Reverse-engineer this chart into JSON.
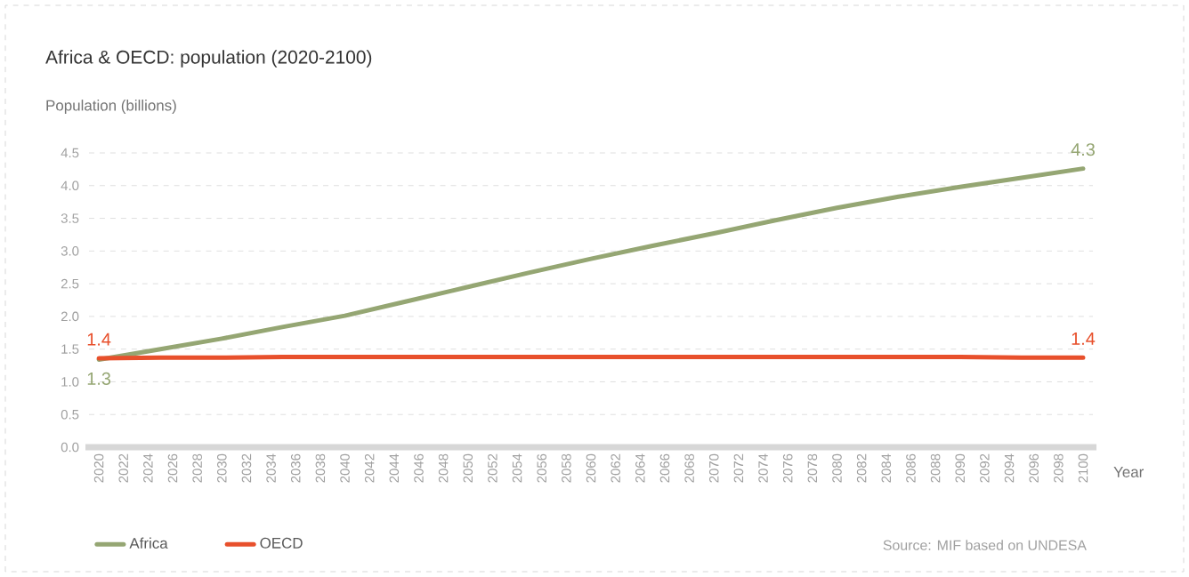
{
  "chart_data": {
    "type": "line",
    "title": "Africa & OECD: population (2020-2100)",
    "ylabel": "Population (billions)",
    "xlabel": "Year",
    "x": [
      2020,
      2025,
      2030,
      2035,
      2040,
      2045,
      2050,
      2055,
      2060,
      2065,
      2070,
      2075,
      2080,
      2085,
      2090,
      2095,
      2100
    ],
    "series": [
      {
        "name": "Africa",
        "color": "#95a673",
        "values": [
          1.34,
          1.5,
          1.66,
          1.84,
          2.01,
          2.23,
          2.45,
          2.67,
          2.88,
          3.08,
          3.27,
          3.47,
          3.66,
          3.83,
          3.98,
          4.12,
          4.26
        ],
        "value_labels": [
          "1.3",
          null,
          null,
          null,
          null,
          null,
          null,
          null,
          null,
          null,
          null,
          null,
          null,
          null,
          null,
          null,
          "4.3"
        ]
      },
      {
        "name": "OECD",
        "color": "#e8502c",
        "values": [
          1.36,
          1.37,
          1.37,
          1.38,
          1.38,
          1.38,
          1.38,
          1.38,
          1.38,
          1.38,
          1.38,
          1.38,
          1.38,
          1.38,
          1.38,
          1.37,
          1.37
        ],
        "value_labels": [
          "1.4",
          null,
          null,
          null,
          null,
          null,
          null,
          null,
          null,
          null,
          null,
          null,
          null,
          null,
          null,
          null,
          "1.4"
        ]
      }
    ],
    "xlim": [
      2019.2,
      2100.8
    ],
    "xticks": [
      2020,
      2022,
      2024,
      2026,
      2028,
      2030,
      2032,
      2034,
      2036,
      2038,
      2040,
      2042,
      2044,
      2046,
      2048,
      2050,
      2052,
      2054,
      2056,
      2058,
      2060,
      2062,
      2064,
      2066,
      2068,
      2070,
      2072,
      2074,
      2076,
      2078,
      2080,
      2082,
      2084,
      2086,
      2088,
      2090,
      2092,
      2094,
      2096,
      2098,
      2100
    ],
    "ylim": [
      0,
      4.5
    ],
    "yticks": [
      {
        "value": 0,
        "label": "0.0"
      },
      0.5,
      {
        "value": 1,
        "label": "1.0"
      },
      1.5,
      {
        "value": 2,
        "label": "2.0"
      },
      2.5,
      {
        "value": 3,
        "label": "3.0"
      },
      3.5,
      {
        "value": 4,
        "label": "4.0"
      },
      4.5
    ],
    "grid": "y",
    "legend": "bottom left",
    "marker": "none",
    "line_style": "solid",
    "annotations": [
      "Source: MIF based on UNDESA"
    ]
  }
}
